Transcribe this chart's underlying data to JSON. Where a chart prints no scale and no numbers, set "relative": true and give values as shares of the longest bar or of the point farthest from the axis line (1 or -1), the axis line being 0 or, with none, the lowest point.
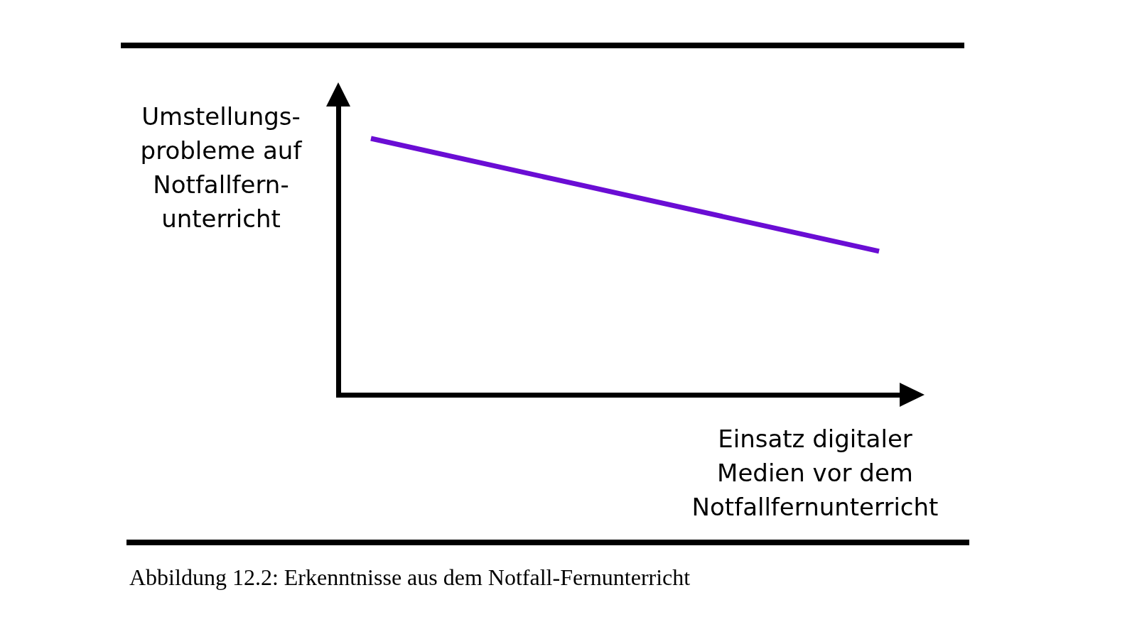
{
  "chart_data": {
    "type": "line",
    "relative": true,
    "xlabel": "Einsatz digitaler Medien vor dem Notfallfernunterricht",
    "ylabel": "Umstellungs- probleme auf Notfallfern- unterricht",
    "categories": [
      null,
      null
    ],
    "series": [
      {
        "color": "#6a0dd4",
        "values": [
          1,
          0.56
        ]
      }
    ],
    "annotations": [
      "Abbildung 12.2: Erkenntnisse aus dem Notfall-Fernunterricht"
    ]
  }
}
